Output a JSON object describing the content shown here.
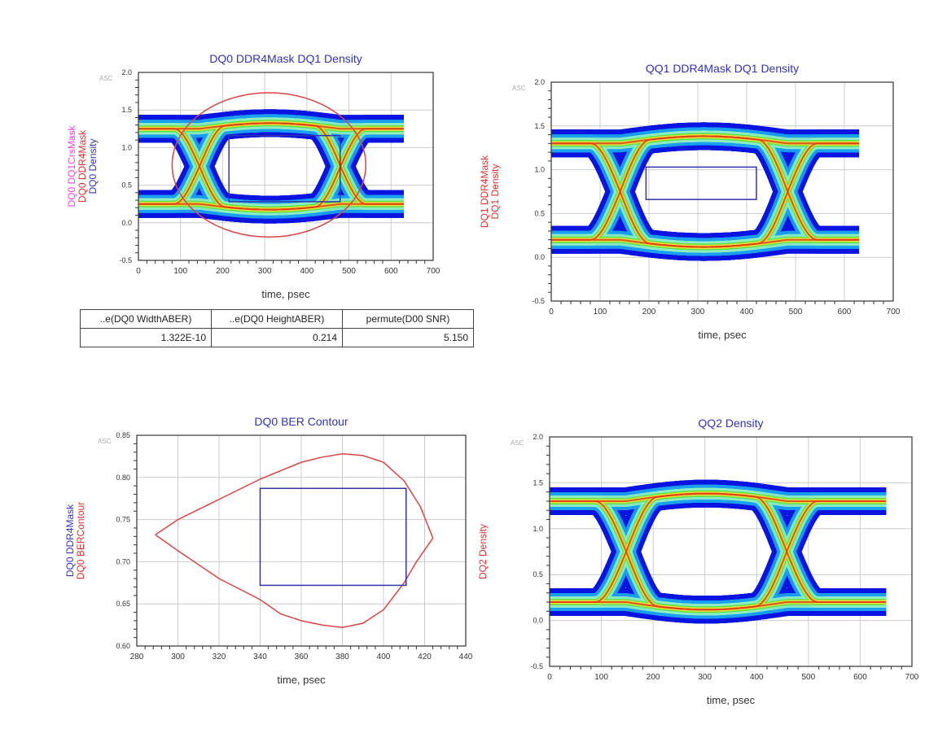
{
  "colors": {
    "title": "#3333bb",
    "axis": "#333333",
    "grid": "#cccccc",
    "mask": "#3333aa",
    "contour": "#dd4444"
  },
  "charts": [
    {
      "type": "heatmap",
      "title": "DQ0 DDR4Mask DQ1 Density",
      "corner_label": "ASC",
      "ylabel": [
        {
          "text": "DQ0 DQ1CrsMask",
          "color": "#ee44ee"
        },
        {
          "text": "DQ0 DDR4Mask",
          "color": "#dd3333"
        },
        {
          "text": "DQ0 Density",
          "color": "#3333bb"
        }
      ],
      "xlabel": "time, psec",
      "xlim": [
        0,
        700
      ],
      "ylim": [
        -0.5,
        2.0
      ],
      "xticks": [
        "0",
        "100",
        "200",
        "300",
        "400",
        "500",
        "600",
        "700"
      ],
      "yticks": [
        "-0.5",
        "0.0",
        "0.5",
        "1.0",
        "1.5",
        "2.0"
      ],
      "eye": {
        "t_cross": [
          145,
          480
        ],
        "v_cross": 0.75,
        "v_high": 1.25,
        "v_low": 0.25,
        "t_end": 630
      },
      "mask": {
        "t": [
          215,
          479
        ],
        "v": [
          0.28,
          1.16
        ]
      },
      "ellipse": {
        "center": [
          310,
          0.77
        ],
        "radius": [
          230,
          0.96
        ]
      }
    },
    {
      "type": "heatmap",
      "title": "QQ1 DDR4Mask DQ1 Density",
      "corner_label": "ASC",
      "ylabel": [
        {
          "text": "DQ1 DDR4Mask",
          "color": "#dd3333"
        },
        {
          "text": "DQ1 Density",
          "color": "#dd3333"
        }
      ],
      "xlabel": "time, psec",
      "xlim": [
        0,
        700
      ],
      "ylim": [
        -0.5,
        2.0
      ],
      "xticks": [
        "0",
        "100",
        "200",
        "300",
        "400",
        "500",
        "600",
        "700"
      ],
      "yticks": [
        "-0.5",
        "0.0",
        "0.5",
        "1.0",
        "1.5",
        "2.0"
      ],
      "eye": {
        "t_cross": [
          141,
          484
        ],
        "v_cross": 0.75,
        "v_high": 1.3,
        "v_low": 0.2,
        "t_end": 630
      },
      "mask": {
        "t": [
          194,
          420
        ],
        "v": [
          0.66,
          1.03
        ]
      }
    },
    {
      "type": "line",
      "title": "DQ0 BER Contour",
      "corner_label": "ASC",
      "ylabel": [
        {
          "text": "DQ0 DDR4Mask",
          "color": "#3333cc"
        },
        {
          "text": "DQ0 BERContour",
          "color": "#dd3333"
        }
      ],
      "xlabel": "time, psec",
      "xlim": [
        280,
        440
      ],
      "ylim": [
        0.6,
        0.85
      ],
      "xticks": [
        "280",
        "300",
        "320",
        "340",
        "360",
        "380",
        "400",
        "420",
        "440"
      ],
      "yticks": [
        "0.60",
        "0.65",
        "0.70",
        "0.75",
        "0.80",
        "0.85"
      ],
      "mask": {
        "t": [
          340,
          411
        ],
        "v": [
          0.672,
          0.787
        ]
      },
      "contour": [
        [
          289,
          0.732
        ],
        [
          300,
          0.75
        ],
        [
          320,
          0.774
        ],
        [
          340,
          0.798
        ],
        [
          360,
          0.818
        ],
        [
          370,
          0.824
        ],
        [
          380,
          0.828
        ],
        [
          390,
          0.826
        ],
        [
          400,
          0.818
        ],
        [
          410,
          0.796
        ],
        [
          418,
          0.765
        ],
        [
          424,
          0.728
        ],
        [
          416,
          0.7
        ],
        [
          410,
          0.675
        ],
        [
          400,
          0.643
        ],
        [
          390,
          0.627
        ],
        [
          380,
          0.622
        ],
        [
          370,
          0.625
        ],
        [
          360,
          0.63
        ],
        [
          350,
          0.638
        ],
        [
          340,
          0.655
        ],
        [
          320,
          0.68
        ],
        [
          300,
          0.713
        ],
        [
          289,
          0.732
        ]
      ]
    },
    {
      "type": "heatmap",
      "title": "QQ2 Density",
      "corner_label": "ASC",
      "ylabel": [
        {
          "text": "DQ2 Density",
          "color": "#dd3333"
        }
      ],
      "xlabel": "time, psec",
      "xlim": [
        0,
        700
      ],
      "ylim": [
        -0.5,
        2.0
      ],
      "xticks": [
        "0",
        "100",
        "200",
        "300",
        "400",
        "500",
        "600",
        "700"
      ],
      "yticks": [
        "-0.5",
        "0.0",
        "0.5",
        "1.0",
        "1.5",
        "2.0"
      ],
      "eye": {
        "t_cross": [
          148,
          458
        ],
        "v_cross": 0.72,
        "v_high": 1.3,
        "v_low": 0.2,
        "t_end": 650
      }
    }
  ],
  "table": {
    "headers": [
      "..e(DQ0 WidthABER)",
      "..e(DQ0 HeightABER)",
      "permute(D00 SNR)"
    ],
    "values": [
      "1.322E-10",
      "0.214",
      "5.150"
    ]
  }
}
